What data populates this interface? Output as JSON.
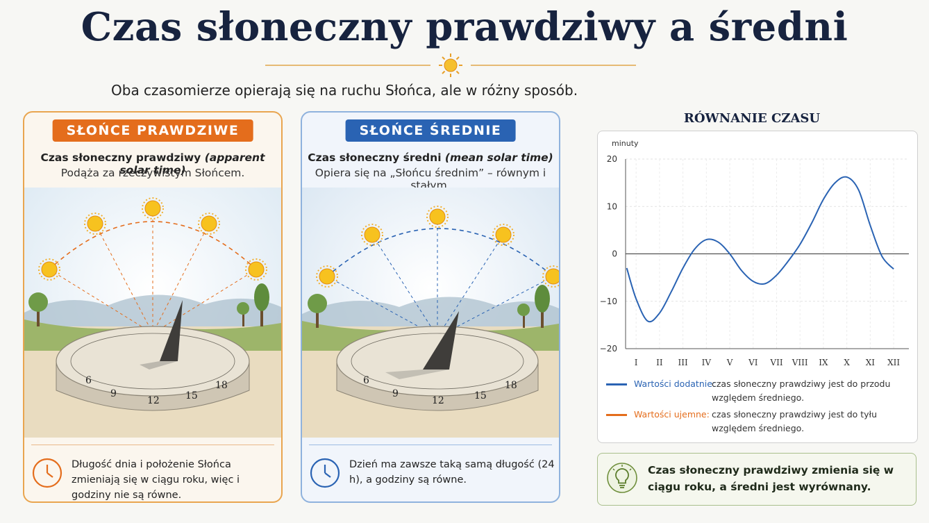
{
  "title": "Czas słoneczny prawdziwy a średni",
  "subtitle": "Oba czasomierze opierają się na ruchu Słońca, ale w różny sposób.",
  "cards": [
    {
      "badge": "SŁOŃCE PRAWDZIWE",
      "line1_main": "Czas słoneczny prawdziwy ",
      "line1_italic": "(apparent solar time)",
      "line2": "Podąża za rzeczywistym Słońcem.",
      "dial_numbers": [
        "6",
        "9",
        "12",
        "15",
        "18"
      ],
      "note": "Długość dnia i położenie Słońca zmieniają się w ciągu roku, więc i godziny nie są równe.",
      "accent": "#e46d1c"
    },
    {
      "badge": "SŁOŃCE ŚREDNIE",
      "line1_main": "Czas słoneczny średni ",
      "line1_italic": "(mean solar time)",
      "line2": "Opiera się na „Słońcu średnim” – równym i stałym.",
      "dial_numbers": [
        "6",
        "9",
        "12",
        "15",
        "18"
      ],
      "note": "Dzień ma zawsze taką samą długość (24 h), a godziny są równe.",
      "accent": "#2a63b3"
    }
  ],
  "chart_data": {
    "type": "line",
    "title": "RÓWNANIE CZASU",
    "ylabel": "minuty",
    "xlabel": "",
    "x": [
      "I",
      "II",
      "III",
      "IV",
      "V",
      "VI",
      "VII",
      "VIII",
      "IX",
      "X",
      "XI",
      "XII"
    ],
    "ylim": [
      -20,
      20
    ],
    "yticks": [
      20,
      10,
      0,
      -10,
      -20
    ],
    "grid": true,
    "series": [
      {
        "color": "#2a63b3",
        "points": [
          [
            0.6,
            -3
          ],
          [
            1.0,
            -9.5
          ],
          [
            1.5,
            -14.2
          ],
          [
            2.0,
            -12.5
          ],
          [
            2.5,
            -8
          ],
          [
            3.0,
            -3
          ],
          [
            3.5,
            1
          ],
          [
            4.0,
            3
          ],
          [
            4.5,
            2.5
          ],
          [
            5.0,
            0
          ],
          [
            5.5,
            -3.5
          ],
          [
            6.0,
            -5.8
          ],
          [
            6.5,
            -6.3
          ],
          [
            7.0,
            -4.5
          ],
          [
            7.5,
            -1.5
          ],
          [
            8.0,
            2
          ],
          [
            8.5,
            6.5
          ],
          [
            9.0,
            11.5
          ],
          [
            9.5,
            15
          ],
          [
            10.0,
            16.2
          ],
          [
            10.5,
            13.5
          ],
          [
            11.0,
            6
          ],
          [
            11.5,
            -0.5
          ],
          [
            12.0,
            -3.2
          ]
        ]
      }
    ],
    "legend": [
      {
        "label": "Wartości dodatnie:",
        "text": "czas słoneczny prawdziwy jest do przodu względem średniego.",
        "color": "#2a63b3"
      },
      {
        "label": "Wartości ujemne:",
        "text": "czas słoneczny prawdziwy jest do tyłu względem średniego.",
        "color": "#e46d1c"
      }
    ]
  },
  "summary": "Czas słoneczny prawdziwy zmienia się w ciągu roku, a średni jest wyrównany."
}
